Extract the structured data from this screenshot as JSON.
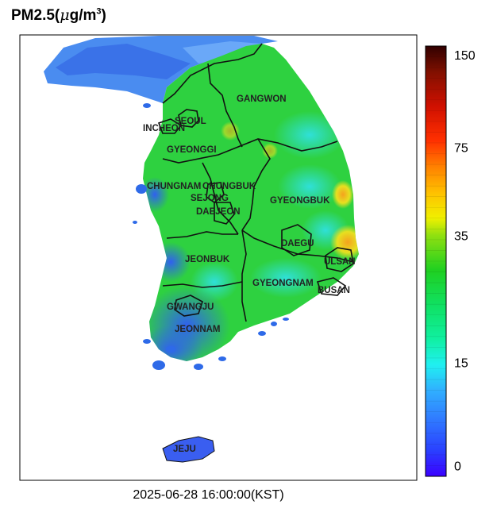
{
  "title": {
    "text": "PM2.5(",
    "mu": "μ",
    "unit": "g/m",
    "sup": "3",
    "close": ")"
  },
  "timestamp": "2025-06-28 16:00:00(KST)",
  "colorbar": {
    "ticks": [
      {
        "label": "150",
        "value": 150
      },
      {
        "label": "75",
        "value": 75
      },
      {
        "label": "35",
        "value": 35
      },
      {
        "label": "15",
        "value": 15
      },
      {
        "label": "0",
        "value": 0
      }
    ]
  },
  "regions": [
    {
      "name": "GANGWON"
    },
    {
      "name": "SEOUL"
    },
    {
      "name": "INCHEON"
    },
    {
      "name": "GYEONGGI"
    },
    {
      "name": "CHUNGNAM"
    },
    {
      "name": "CHUNGBUK"
    },
    {
      "name": "SEJONG"
    },
    {
      "name": "DAEJEON"
    },
    {
      "name": "GYEONGBUK"
    },
    {
      "name": "DAEGU"
    },
    {
      "name": "ULSAN"
    },
    {
      "name": "JEONBUK"
    },
    {
      "name": "GYEONGNAM"
    },
    {
      "name": "BUSAN"
    },
    {
      "name": "GWANGJU"
    },
    {
      "name": "JEONNAM"
    },
    {
      "name": "JEJU"
    }
  ],
  "colors": {
    "sea": "#ffffff",
    "north_sea_blue": "#4a8cf0",
    "land_green": "#2ed140",
    "land_cyan": "#2fe0c8",
    "land_blue": "#3a78f0",
    "land_yellow": "#e6e020",
    "land_orange": "#f5a21e",
    "border": "#111111"
  }
}
